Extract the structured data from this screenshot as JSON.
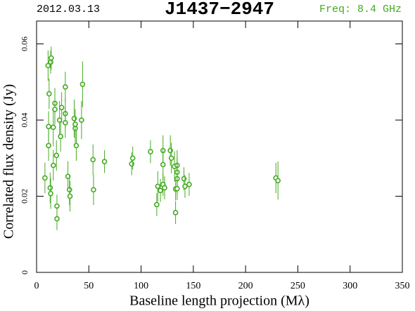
{
  "chart_data": {
    "type": "scatter",
    "date": "2012.03.13",
    "title": "J1437−2947",
    "frequency": "Freq: 8.4 GHz",
    "xlabel": "Baseline length projection (Mλ)",
    "ylabel": "Correlated flux density (Jy)",
    "color": "#44aa22",
    "x": [
      8,
      11,
      12,
      11.5,
      11.5,
      13,
      13.5,
      13.5,
      14,
      16,
      16,
      17.5,
      17.5,
      19,
      19.5,
      19.5,
      22,
      23,
      24,
      27.5,
      27.5,
      27.5,
      30,
      31.5,
      32,
      36,
      37,
      37,
      38,
      43,
      44,
      54,
      54.5,
      65,
      91,
      92,
      109,
      115,
      116,
      118.5,
      121,
      121,
      121,
      122.5,
      128,
      129,
      132,
      133,
      133,
      134.5,
      134.5,
      134.5,
      134.5,
      141,
      142,
      146,
      229,
      231
    ],
    "values": [
      0.0248,
      0.0543,
      0.0469,
      0.0383,
      0.0333,
      0.0222,
      0.0207,
      0.0552,
      0.0563,
      0.0381,
      0.0281,
      0.0444,
      0.0428,
      0.0307,
      0.0174,
      0.0141,
      0.04,
      0.0357,
      0.0433,
      0.0487,
      0.0417,
      0.0393,
      0.0252,
      0.0217,
      0.02,
      0.0404,
      0.0378,
      0.0389,
      0.0333,
      0.04,
      0.0494,
      0.0296,
      0.0217,
      0.0291,
      0.0285,
      0.03,
      0.0317,
      0.0178,
      0.0226,
      0.0215,
      0.032,
      0.0283,
      0.0231,
      0.0222,
      0.032,
      0.03,
      0.0278,
      0.0219,
      0.0157,
      0.0281,
      0.0263,
      0.0246,
      0.022,
      0.0246,
      0.0226,
      0.0231,
      0.0248,
      0.0241
    ],
    "errors": [
      0.004,
      0.004,
      0.004,
      0.004,
      0.004,
      0.004,
      0.004,
      0.003,
      0.003,
      0.005,
      0.004,
      0.004,
      0.004,
      0.004,
      0.003,
      0.003,
      0.005,
      0.004,
      0.004,
      0.004,
      0.004,
      0.004,
      0.004,
      0.004,
      0.004,
      0.005,
      0.004,
      0.004,
      0.004,
      0.005,
      0.006,
      0.004,
      0.004,
      0.003,
      0.003,
      0.003,
      0.003,
      0.003,
      0.004,
      0.003,
      0.004,
      0.004,
      0.003,
      0.003,
      0.004,
      0.004,
      0.004,
      0.003,
      0.003,
      0.004,
      0.004,
      0.004,
      0.003,
      0.003,
      0.003,
      0.003,
      0.004,
      0.005
    ],
    "xlim": [
      0,
      350
    ],
    "xticks": [
      0,
      50,
      100,
      150,
      200,
      250,
      300,
      350
    ],
    "ylim": [
      0,
      0.066
    ],
    "yticks": [
      0,
      0.02,
      0.04,
      0.06
    ]
  }
}
